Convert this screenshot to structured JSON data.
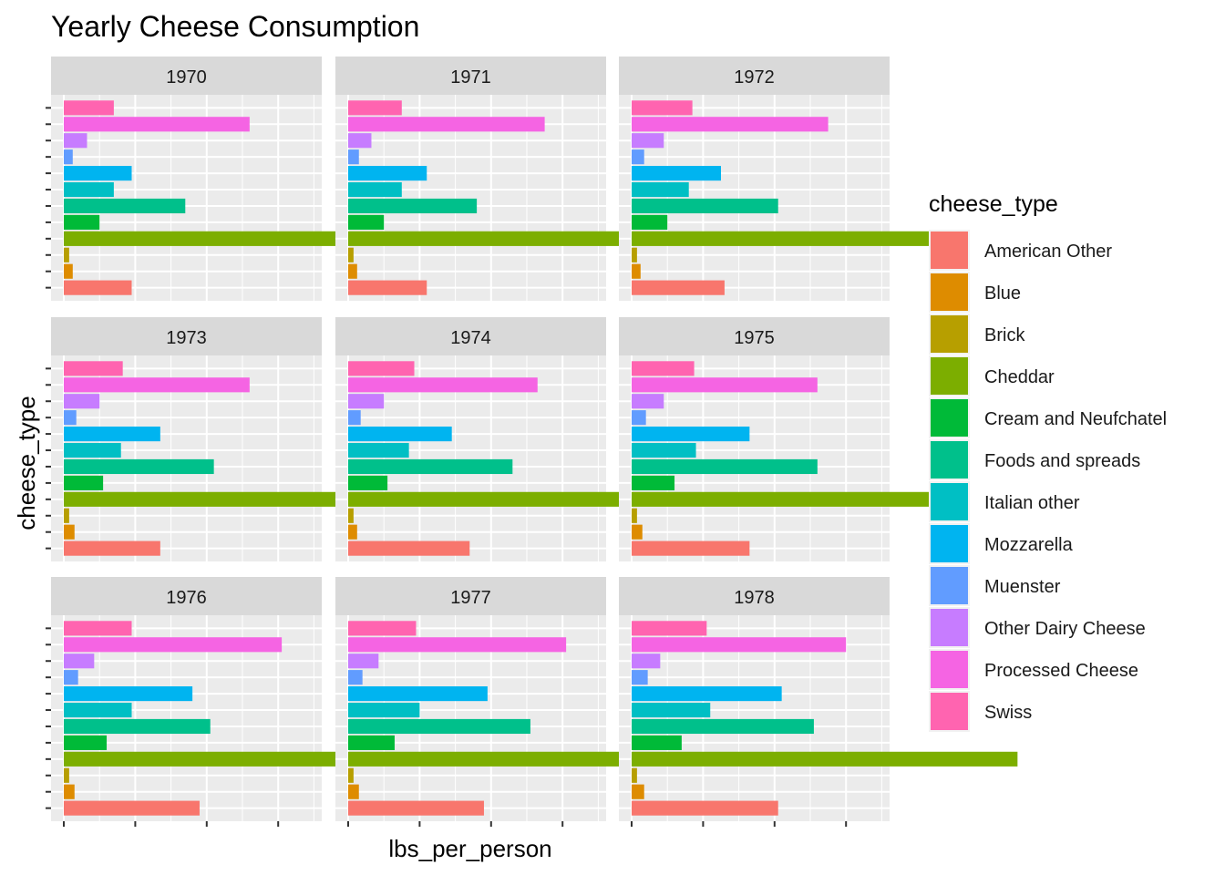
{
  "chart_data": {
    "type": "bar",
    "orientation": "horizontal",
    "title": "Yearly Cheese Consumption",
    "xlabel": "lbs_per_person",
    "ylabel": "cheese_type",
    "xlim": [
      0,
      11.3
    ],
    "grid": true,
    "legend": {
      "title": "cheese_type",
      "position": "right",
      "items": [
        {
          "name": "American Other",
          "color": "#F8766D"
        },
        {
          "name": "Blue",
          "color": "#DE8C00"
        },
        {
          "name": "Brick",
          "color": "#B79F00"
        },
        {
          "name": "Cheddar",
          "color": "#7CAE00"
        },
        {
          "name": "Cream and Neufchatel",
          "color": "#00BA38"
        },
        {
          "name": "Foods and spreads",
          "color": "#00C08B"
        },
        {
          "name": "Italian other",
          "color": "#00BFC4"
        },
        {
          "name": "Mozzarella",
          "color": "#00B4F0"
        },
        {
          "name": "Muenster",
          "color": "#619CFF"
        },
        {
          "name": "Other Dairy Cheese",
          "color": "#C77CFF"
        },
        {
          "name": "Processed Cheese",
          "color": "#F564E3"
        },
        {
          "name": "Swiss",
          "color": "#FF64B0"
        }
      ]
    },
    "categories": [
      "American Other",
      "Blue",
      "Brick",
      "Cheddar",
      "Cream and Neufchatel",
      "Foods and spreads",
      "Italian other",
      "Mozzarella",
      "Muenster",
      "Other Dairy Cheese",
      "Processed Cheese",
      "Swiss"
    ],
    "panels": [
      {
        "label": "1970",
        "values": [
          1.9,
          0.25,
          0.15,
          9.0,
          1.0,
          3.4,
          1.4,
          1.9,
          0.25,
          0.65,
          5.2,
          1.4
        ]
      },
      {
        "label": "1971",
        "values": [
          2.2,
          0.25,
          0.15,
          9.2,
          1.0,
          3.6,
          1.5,
          2.2,
          0.3,
          0.65,
          5.5,
          1.5
        ]
      },
      {
        "label": "1972",
        "values": [
          2.6,
          0.25,
          0.15,
          9.4,
          1.0,
          4.1,
          1.6,
          2.5,
          0.35,
          0.9,
          5.5,
          1.7
        ]
      },
      {
        "label": "1973",
        "values": [
          2.7,
          0.3,
          0.15,
          9.5,
          1.1,
          4.2,
          1.6,
          2.7,
          0.35,
          1.0,
          5.2,
          1.65
        ]
      },
      {
        "label": "1974",
        "values": [
          3.4,
          0.25,
          0.15,
          9.8,
          1.1,
          4.6,
          1.7,
          2.9,
          0.35,
          1.0,
          5.3,
          1.85
        ]
      },
      {
        "label": "1975",
        "values": [
          3.3,
          0.3,
          0.15,
          9.4,
          1.2,
          5.2,
          1.8,
          3.3,
          0.4,
          0.9,
          5.2,
          1.75
        ]
      },
      {
        "label": "1976",
        "values": [
          3.8,
          0.3,
          0.15,
          10.0,
          1.2,
          4.1,
          1.9,
          3.6,
          0.4,
          0.85,
          6.1,
          1.9
        ]
      },
      {
        "label": "1977",
        "values": [
          3.8,
          0.3,
          0.15,
          10.6,
          1.3,
          5.1,
          2.0,
          3.9,
          0.4,
          0.85,
          6.1,
          1.9
        ]
      },
      {
        "label": "1978",
        "values": [
          4.1,
          0.35,
          0.15,
          10.8,
          1.4,
          5.1,
          2.2,
          4.2,
          0.45,
          0.8,
          6.0,
          2.1
        ]
      }
    ]
  }
}
